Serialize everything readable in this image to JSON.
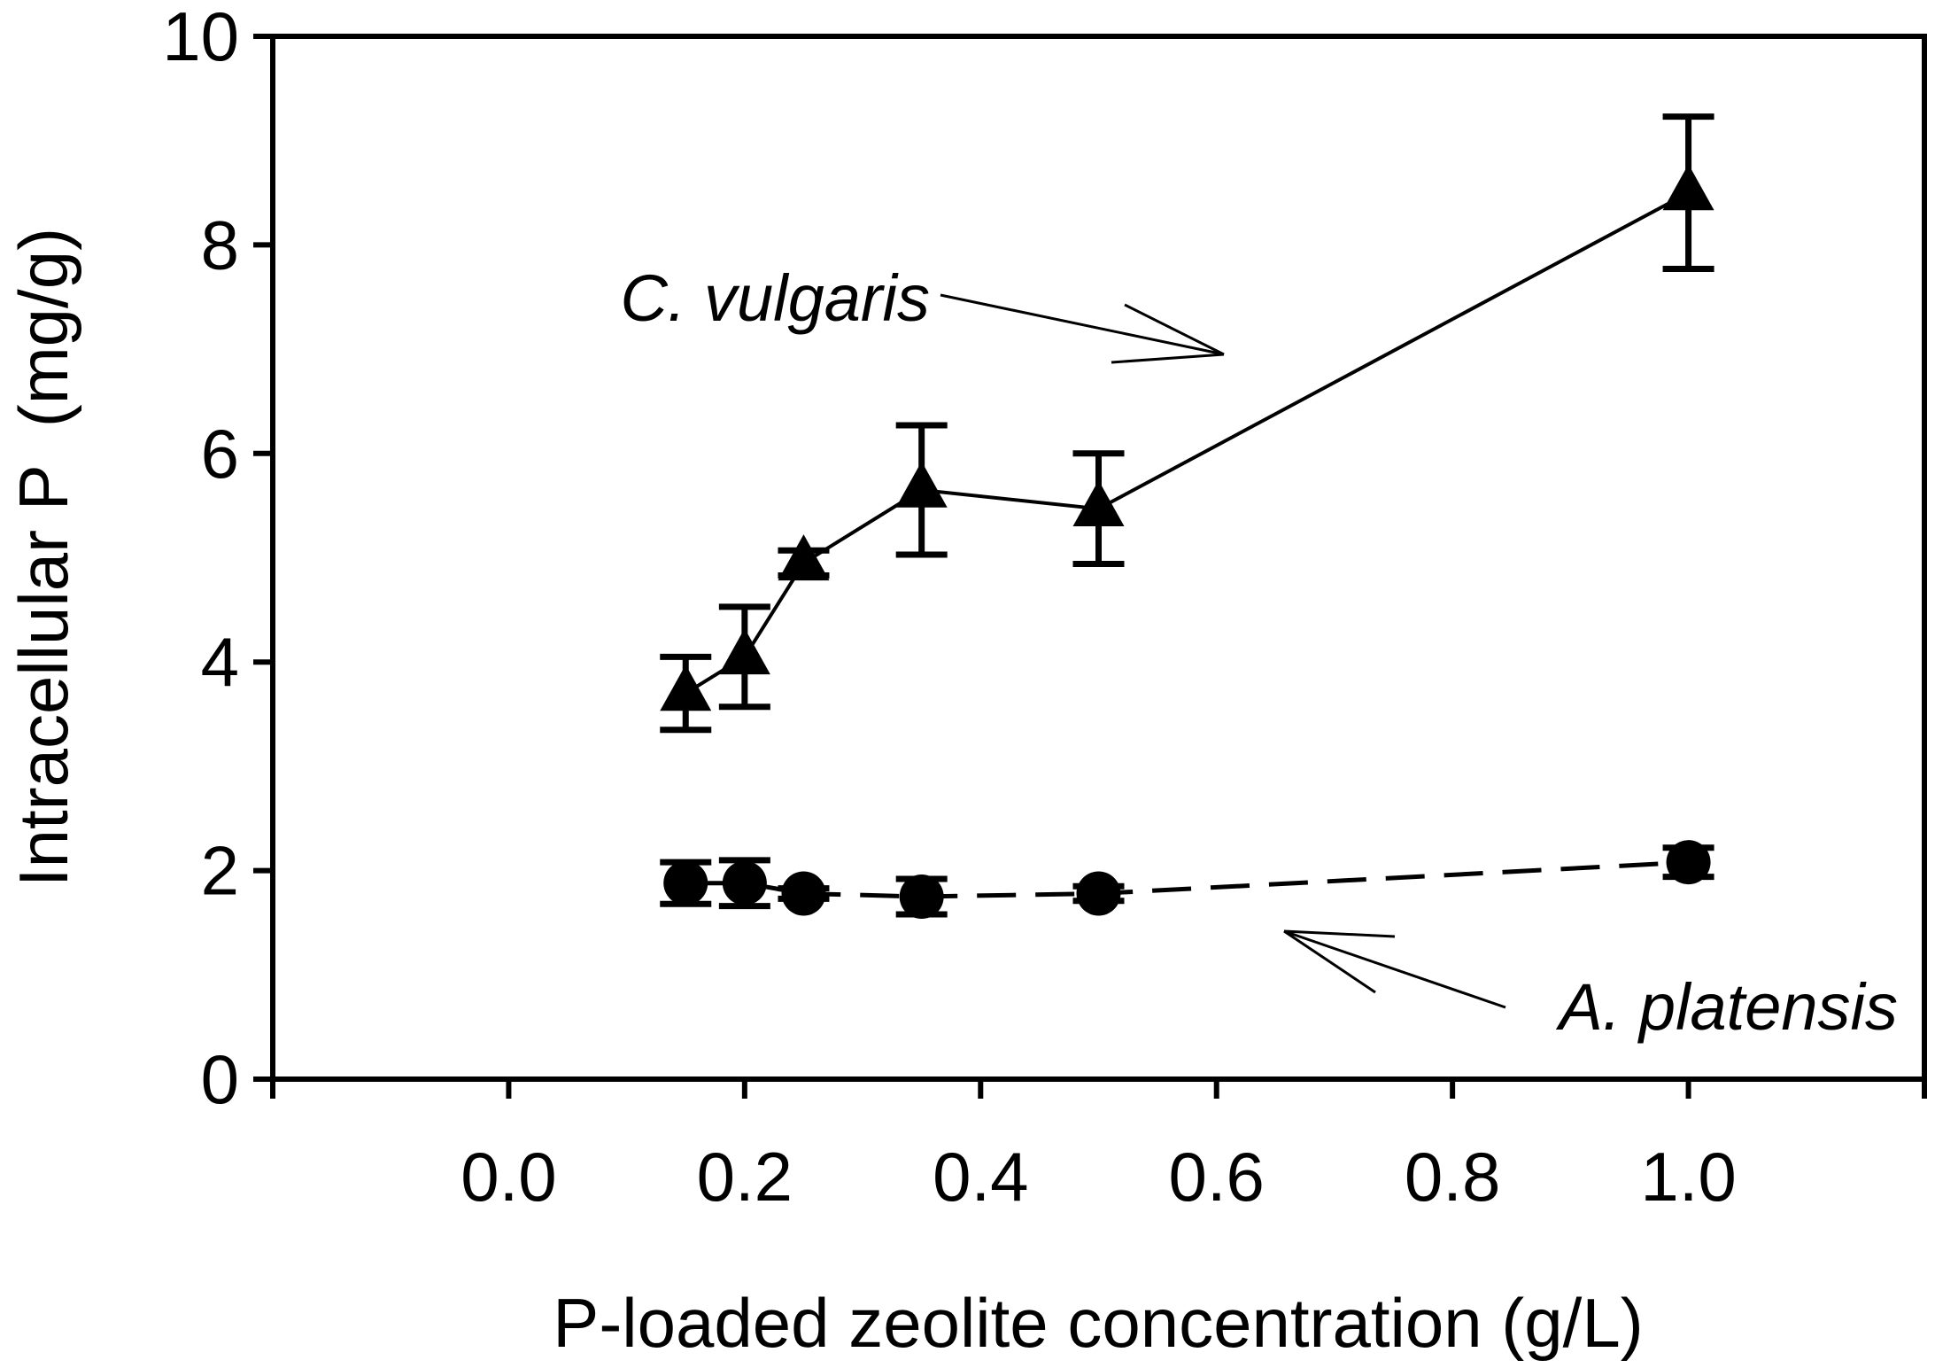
{
  "chart_data": {
    "type": "line",
    "title": "",
    "xlabel": "P-loaded zeolite concentration (g/L)",
    "ylabel": "Intracellular P  (mg/g)",
    "xlim": [
      -0.2,
      1.2
    ],
    "ylim": [
      0,
      10
    ],
    "xticks": [
      "0.0",
      "0.2",
      "0.4",
      "0.6",
      "0.8",
      "1.0"
    ],
    "yticks": [
      "0",
      "2",
      "4",
      "6",
      "8",
      "10"
    ],
    "grid": false,
    "series": [
      {
        "name": "C. vulgaris",
        "marker": "triangle",
        "line_style": "solid",
        "x": [
          0.15,
          0.2,
          0.25,
          0.35,
          0.5,
          1.0
        ],
        "values": [
          3.7,
          4.05,
          4.95,
          5.65,
          5.47,
          8.5
        ],
        "error": [
          0.35,
          0.48,
          0.12,
          0.62,
          0.53,
          0.73
        ]
      },
      {
        "name": "A. platensis",
        "marker": "circle",
        "line_style": "dashed",
        "x": [
          0.15,
          0.2,
          0.25,
          0.35,
          0.5,
          1.0
        ],
        "values": [
          1.88,
          1.88,
          1.78,
          1.75,
          1.78,
          2.08
        ],
        "error": [
          0.2,
          0.22,
          0.05,
          0.17,
          0.07,
          0.14
        ]
      }
    ],
    "annotations": [
      {
        "text": "C. vulgaris",
        "series": "C. vulgaris"
      },
      {
        "text": "A. platensis",
        "series": "A. platensis"
      }
    ]
  }
}
